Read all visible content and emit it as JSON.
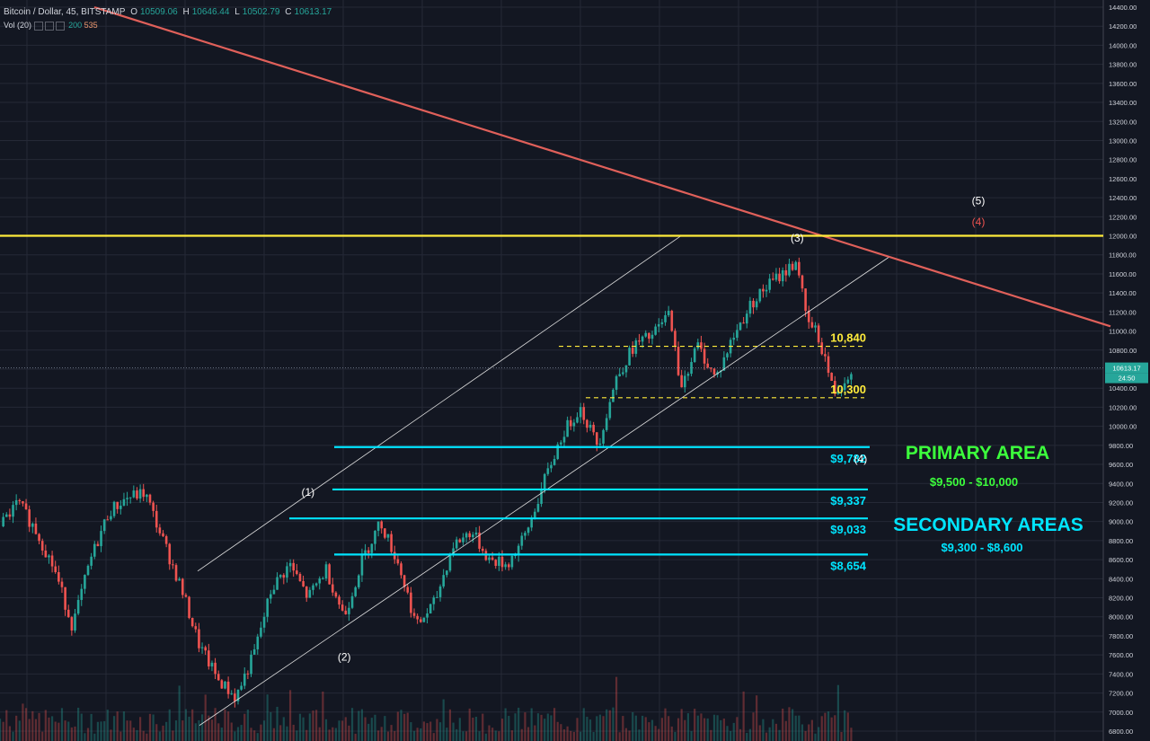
{
  "header": {
    "symbol": "Bitcoin / Dollar, 45, BITSTAMP",
    "o_label": "O",
    "o": "10509.06",
    "h_label": "H",
    "h": "10646.44",
    "l_label": "L",
    "l": "10502.79",
    "c_label": "C",
    "c": "10613.17",
    "vol_label": "Vol (20)",
    "vol_a": "200",
    "vol_b": "535"
  },
  "colors": {
    "background": "#131722",
    "grid": "#252936",
    "up": "#26a69a",
    "down": "#ef5350",
    "trendline": "#e0605a",
    "resistance": "#ffeb3b",
    "support": "#00e5ff",
    "primary_text": "#3cff3c",
    "secondary_text": "#00e5ff"
  },
  "chart_data": {
    "type": "candlestick",
    "title": "Bitcoin / Dollar, 45, BITSTAMP",
    "y_axis": {
      "ylim": [
        6800,
        14400
      ],
      "ticks": [
        6800,
        7000,
        7200,
        7400,
        7600,
        7800,
        8000,
        8200,
        8400,
        8600,
        8800,
        9000,
        9200,
        9400,
        9600,
        9800,
        10000,
        10200,
        10400,
        10600,
        10800,
        11000,
        11200,
        11400,
        11600,
        11800,
        12000,
        12200,
        12400,
        12600,
        12800,
        13000,
        13200,
        13400,
        13600,
        13800,
        14000,
        14200,
        14400
      ],
      "tick_format": "0.00",
      "position": "right"
    },
    "last_price": "10613.17",
    "last_price_badge_2": "24:50",
    "price_path": [
      {
        "t": 0,
        "p": 8950
      },
      {
        "t": 2,
        "p": 9200
      },
      {
        "t": 4,
        "p": 8900
      },
      {
        "t": 6,
        "p": 8500
      },
      {
        "t": 8,
        "p": 7900
      },
      {
        "t": 10,
        "p": 8600
      },
      {
        "t": 12,
        "p": 9100
      },
      {
        "t": 14,
        "p": 9250
      },
      {
        "t": 16,
        "p": 9300
      },
      {
        "t": 18,
        "p": 8800
      },
      {
        "t": 20,
        "p": 8300
      },
      {
        "t": 22,
        "p": 7700
      },
      {
        "t": 24,
        "p": 7350
      },
      {
        "t": 26,
        "p": 7150
      },
      {
        "t": 28,
        "p": 7600
      },
      {
        "t": 30,
        "p": 8300
      },
      {
        "t": 32,
        "p": 8550
      },
      {
        "t": 34,
        "p": 8200
      },
      {
        "t": 36,
        "p": 8500
      },
      {
        "t": 38,
        "p": 8000
      },
      {
        "t": 40,
        "p": 8600
      },
      {
        "t": 42,
        "p": 9000
      },
      {
        "t": 44,
        "p": 8550
      },
      {
        "t": 46,
        "p": 7900
      },
      {
        "t": 48,
        "p": 8150
      },
      {
        "t": 50,
        "p": 8750
      },
      {
        "t": 52,
        "p": 8900
      },
      {
        "t": 54,
        "p": 8600
      },
      {
        "t": 56,
        "p": 8550
      },
      {
        "t": 58,
        "p": 8850
      },
      {
        "t": 60,
        "p": 9400
      },
      {
        "t": 62,
        "p": 9900
      },
      {
        "t": 64,
        "p": 10200
      },
      {
        "t": 66,
        "p": 9800
      },
      {
        "t": 68,
        "p": 10500
      },
      {
        "t": 70,
        "p": 10850
      },
      {
        "t": 72,
        "p": 10950
      },
      {
        "t": 74,
        "p": 11200
      },
      {
        "t": 75,
        "p": 10400
      },
      {
        "t": 77,
        "p": 10850
      },
      {
        "t": 79,
        "p": 10500
      },
      {
        "t": 81,
        "p": 10950
      },
      {
        "t": 83,
        "p": 11300
      },
      {
        "t": 85,
        "p": 11500
      },
      {
        "t": 87,
        "p": 11650
      },
      {
        "t": 88,
        "p": 11750
      },
      {
        "t": 89,
        "p": 11100
      },
      {
        "t": 90,
        "p": 11000
      },
      {
        "t": 91,
        "p": 10750
      },
      {
        "t": 92,
        "p": 10350
      },
      {
        "t": 93,
        "p": 10450
      },
      {
        "t": 94,
        "p": 10613
      }
    ],
    "levels": [
      {
        "price": 12000,
        "label": "",
        "color": "#ffeb3b",
        "style": "solid"
      },
      {
        "price": 10840,
        "label": "10,840",
        "color": "#ffeb3b",
        "style": "dashed"
      },
      {
        "price": 10300,
        "label": "10,300",
        "color": "#ffeb3b",
        "style": "dashed"
      },
      {
        "price": 9782,
        "label": "$9,782",
        "color": "#00e5ff",
        "style": "solid"
      },
      {
        "price": 9337,
        "label": "$9,337",
        "color": "#00e5ff",
        "style": "solid"
      },
      {
        "price": 9033,
        "label": "$9,033",
        "color": "#00e5ff",
        "style": "solid"
      },
      {
        "price": 8654,
        "label": "$8,654",
        "color": "#00e5ff",
        "style": "solid"
      }
    ],
    "areas": [
      {
        "title": "PRIMARY AREA",
        "range": "$9,500 - $10,000",
        "color": "#3cff3c"
      },
      {
        "title": "SECONDARY AREAS",
        "range": "$9,300 - $8,600",
        "color": "#00e5ff"
      }
    ],
    "wave_labels": [
      {
        "text": "(1)",
        "t": 34,
        "p": 9270,
        "color": "#ffffff"
      },
      {
        "text": "(2)",
        "t": 38,
        "p": 7540,
        "color": "#ffffff"
      },
      {
        "text": "(3)",
        "t": 88,
        "p": 11940,
        "color": "#ffffff"
      },
      {
        "text": "(4)",
        "t": 95,
        "p": 9620,
        "color": "#ffffff"
      },
      {
        "text": "(4)",
        "t": 108,
        "p": 12110,
        "color": "#ef5350"
      },
      {
        "text": "(5)",
        "t": 108,
        "p": 12330,
        "color": "#ffffff"
      }
    ]
  }
}
